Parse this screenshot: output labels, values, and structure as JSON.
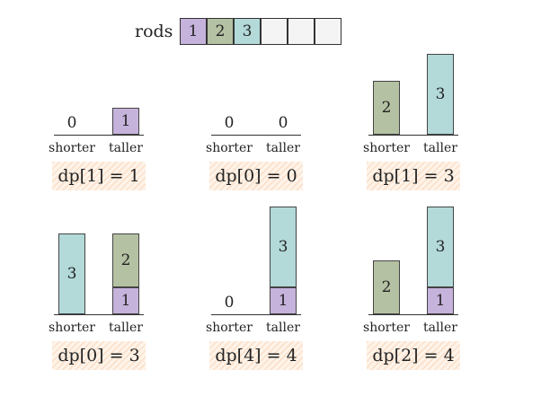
{
  "header": {
    "rods_label": "rods",
    "rods": [
      "1",
      "2",
      "3",
      "",
      "",
      ""
    ]
  },
  "labels": {
    "shorter": "shorter",
    "taller": "taller"
  },
  "panels": [
    {
      "zero_shorter": "0",
      "taller": [
        "1"
      ],
      "dp": "dp[1] = 1"
    },
    {
      "zero_shorter": "0",
      "zero_taller": "0",
      "dp": "dp[0] = 0"
    },
    {
      "shorter": [
        "2"
      ],
      "taller": [
        "3"
      ],
      "dp": "dp[1] = 3"
    },
    {
      "shorter": [
        "3"
      ],
      "taller": [
        "1",
        "2"
      ],
      "dp": "dp[0] = 3"
    },
    {
      "zero_shorter": "0",
      "taller": [
        "1",
        "3"
      ],
      "dp": "dp[4] = 4"
    },
    {
      "shorter": [
        "2"
      ],
      "taller": [
        "1",
        "3"
      ],
      "dp": "dp[2] = 4"
    }
  ]
}
